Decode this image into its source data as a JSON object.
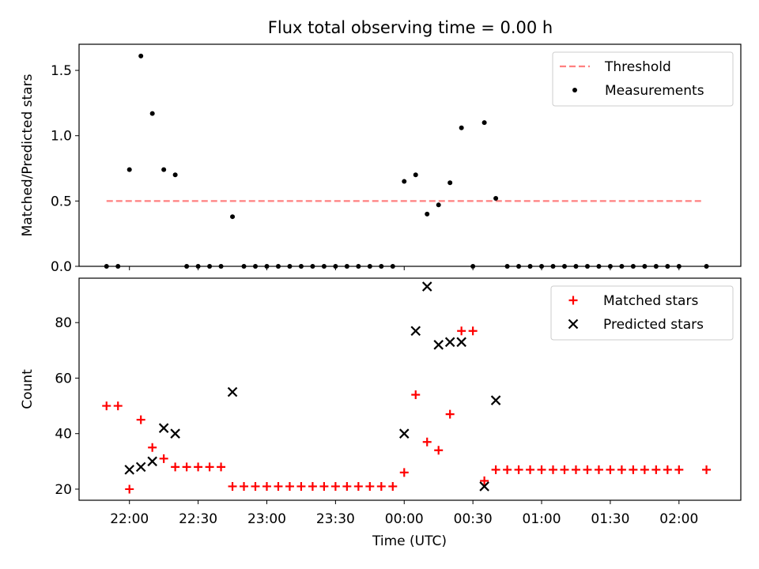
{
  "chart_data": {
    "title": "Flux total observing time = 0.00 h",
    "x_label": "Time (UTC)",
    "x_ticks": [
      "22:00",
      "22:30",
      "23:00",
      "23:30",
      "00:00",
      "00:30",
      "01:00",
      "01:30",
      "02:00"
    ],
    "panels": [
      {
        "id": "ratio",
        "type": "scatter",
        "ylabel": "Matched/Predicted stars",
        "y_ticks": [
          "0.0",
          "0.5",
          "1.0",
          "1.5"
        ],
        "ylim": [
          0,
          1.7
        ],
        "xlim": [
          "21:38",
          "02:27"
        ],
        "legend_position": "top-right",
        "series": [
          {
            "name": "Threshold",
            "kind": "line",
            "style": "dashed",
            "color": "#ff8080",
            "points": [
              [
                "21:50",
                0.5
              ],
              [
                "02:10",
                0.5
              ]
            ]
          },
          {
            "name": "Measurements",
            "kind": "scatter",
            "marker": "dot",
            "color": "#000000",
            "points": [
              [
                "21:50",
                0.0
              ],
              [
                "21:55",
                0.0
              ],
              [
                "22:00",
                0.74
              ],
              [
                "22:05",
                1.61
              ],
              [
                "22:10",
                1.17
              ],
              [
                "22:15",
                0.74
              ],
              [
                "22:20",
                0.7
              ],
              [
                "22:25",
                0.0
              ],
              [
                "22:30",
                0.0
              ],
              [
                "22:35",
                0.0
              ],
              [
                "22:40",
                0.0
              ],
              [
                "22:45",
                0.38
              ],
              [
                "22:50",
                0.0
              ],
              [
                "22:55",
                0.0
              ],
              [
                "23:00",
                0.0
              ],
              [
                "23:05",
                0.0
              ],
              [
                "23:10",
                0.0
              ],
              [
                "23:15",
                0.0
              ],
              [
                "23:20",
                0.0
              ],
              [
                "23:25",
                0.0
              ],
              [
                "23:30",
                0.0
              ],
              [
                "23:35",
                0.0
              ],
              [
                "23:40",
                0.0
              ],
              [
                "23:45",
                0.0
              ],
              [
                "23:50",
                0.0
              ],
              [
                "23:55",
                0.0
              ],
              [
                "00:00",
                0.65
              ],
              [
                "00:05",
                0.7
              ],
              [
                "00:10",
                0.4
              ],
              [
                "00:15",
                0.47
              ],
              [
                "00:20",
                0.64
              ],
              [
                "00:25",
                1.06
              ],
              [
                "00:30",
                0.0
              ],
              [
                "00:35",
                1.1
              ],
              [
                "00:40",
                0.52
              ],
              [
                "00:45",
                0.0
              ],
              [
                "00:50",
                0.0
              ],
              [
                "00:55",
                0.0
              ],
              [
                "01:00",
                0.0
              ],
              [
                "01:05",
                0.0
              ],
              [
                "01:10",
                0.0
              ],
              [
                "01:15",
                0.0
              ],
              [
                "01:20",
                0.0
              ],
              [
                "01:25",
                0.0
              ],
              [
                "01:30",
                0.0
              ],
              [
                "01:35",
                0.0
              ],
              [
                "01:40",
                0.0
              ],
              [
                "01:45",
                0.0
              ],
              [
                "01:50",
                0.0
              ],
              [
                "01:55",
                0.0
              ],
              [
                "02:00",
                0.0
              ],
              [
                "02:12",
                0.0
              ]
            ]
          }
        ]
      },
      {
        "id": "counts",
        "type": "scatter",
        "ylabel": "Count",
        "y_ticks": [
          "20",
          "40",
          "60",
          "80"
        ],
        "ylim": [
          16,
          96
        ],
        "xlim": [
          "21:38",
          "02:27"
        ],
        "legend_position": "top-right",
        "series": [
          {
            "name": "Matched stars",
            "kind": "scatter",
            "marker": "plus",
            "color": "#ff0000",
            "points": [
              [
                "21:50",
                50
              ],
              [
                "21:55",
                50
              ],
              [
                "22:00",
                20
              ],
              [
                "22:05",
                45
              ],
              [
                "22:10",
                35
              ],
              [
                "22:15",
                31
              ],
              [
                "22:20",
                28
              ],
              [
                "22:25",
                28
              ],
              [
                "22:30",
                28
              ],
              [
                "22:35",
                28
              ],
              [
                "22:40",
                28
              ],
              [
                "22:45",
                21
              ],
              [
                "22:50",
                21
              ],
              [
                "22:55",
                21
              ],
              [
                "23:00",
                21
              ],
              [
                "23:05",
                21
              ],
              [
                "23:10",
                21
              ],
              [
                "23:15",
                21
              ],
              [
                "23:20",
                21
              ],
              [
                "23:25",
                21
              ],
              [
                "23:30",
                21
              ],
              [
                "23:35",
                21
              ],
              [
                "23:40",
                21
              ],
              [
                "23:45",
                21
              ],
              [
                "23:50",
                21
              ],
              [
                "23:55",
                21
              ],
              [
                "00:00",
                26
              ],
              [
                "00:05",
                54
              ],
              [
                "00:10",
                37
              ],
              [
                "00:15",
                34
              ],
              [
                "00:20",
                47
              ],
              [
                "00:25",
                77
              ],
              [
                "00:30",
                77
              ],
              [
                "00:35",
                23
              ],
              [
                "00:40",
                27
              ],
              [
                "00:45",
                27
              ],
              [
                "00:50",
                27
              ],
              [
                "00:55",
                27
              ],
              [
                "01:00",
                27
              ],
              [
                "01:05",
                27
              ],
              [
                "01:10",
                27
              ],
              [
                "01:15",
                27
              ],
              [
                "01:20",
                27
              ],
              [
                "01:25",
                27
              ],
              [
                "01:30",
                27
              ],
              [
                "01:35",
                27
              ],
              [
                "01:40",
                27
              ],
              [
                "01:45",
                27
              ],
              [
                "01:50",
                27
              ],
              [
                "01:55",
                27
              ],
              [
                "02:00",
                27
              ],
              [
                "02:12",
                27
              ]
            ]
          },
          {
            "name": "Predicted stars",
            "kind": "scatter",
            "marker": "x",
            "color": "#000000",
            "points": [
              [
                "22:00",
                27
              ],
              [
                "22:05",
                28
              ],
              [
                "22:10",
                30
              ],
              [
                "22:15",
                42
              ],
              [
                "22:20",
                40
              ],
              [
                "22:45",
                55
              ],
              [
                "00:00",
                40
              ],
              [
                "00:05",
                77
              ],
              [
                "00:10",
                93
              ],
              [
                "00:15",
                72
              ],
              [
                "00:20",
                73
              ],
              [
                "00:25",
                73
              ],
              [
                "00:35",
                21
              ],
              [
                "00:40",
                52
              ]
            ]
          }
        ]
      }
    ]
  }
}
